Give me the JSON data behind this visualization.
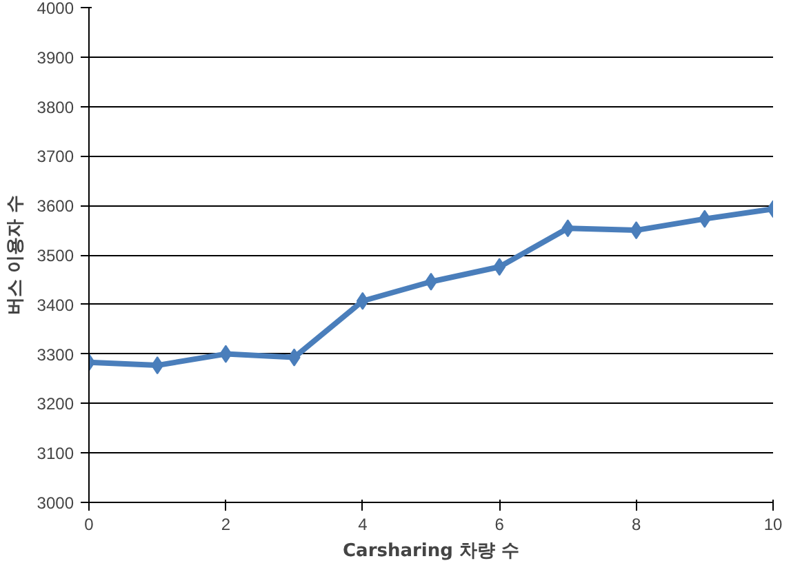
{
  "chart_data": {
    "type": "line",
    "xlabel": "Carsharing 차량 수",
    "ylabel": "버스 이용자 수",
    "x": [
      0,
      1,
      2,
      3,
      4,
      5,
      6,
      7,
      8,
      9,
      10
    ],
    "series": [
      {
        "color": "#4a7ebb",
        "values": [
          3283,
          3277,
          3300,
          3293,
          3407,
          3446,
          3476,
          3554,
          3550,
          3573,
          3593
        ]
      }
    ],
    "xlim": [
      0,
      10
    ],
    "xticks": [
      0,
      2,
      4,
      6,
      8,
      10
    ],
    "ylim": [
      3000,
      4000
    ],
    "yticks": [
      3000,
      3100,
      3200,
      3300,
      3400,
      3500,
      3600,
      3700,
      3800,
      3900,
      4000
    ],
    "grid": "y",
    "marker": "diamond",
    "line_style": "solid"
  }
}
